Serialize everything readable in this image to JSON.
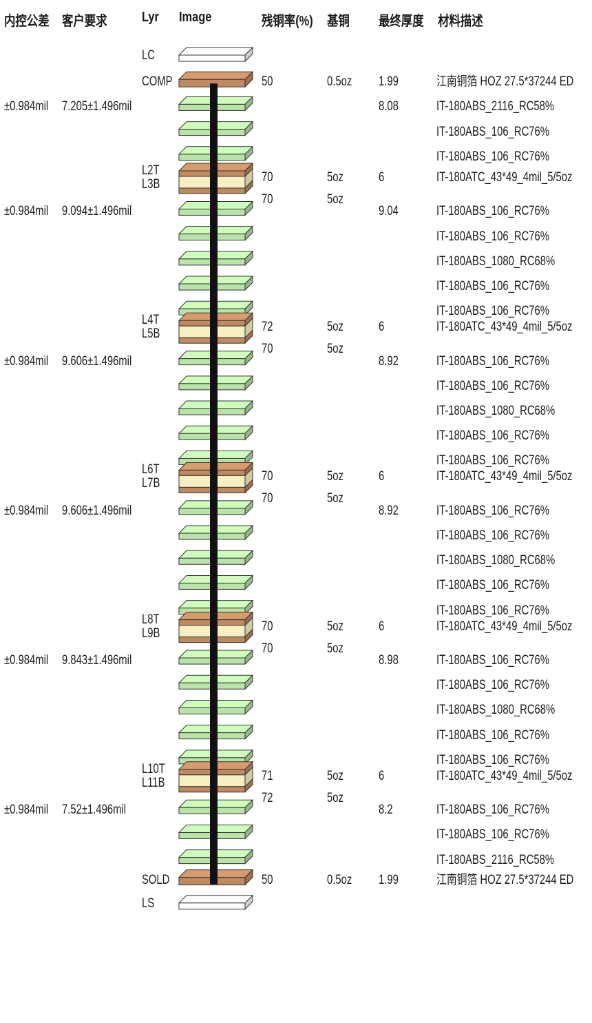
{
  "headers": {
    "inner_tolerance": "内控公差",
    "customer_requirement": "客户要求",
    "layer": "Lyr",
    "image": "Image",
    "residual_copper": "残铜率(%)",
    "base_copper": "基铜",
    "final_thickness": "最终厚度",
    "material": "材料描述"
  },
  "colors": {
    "copper": "#c08a60",
    "copper_light": "#d9a77c",
    "core": "#f6efc2",
    "prepreg": "#b9e3a8",
    "prepreg_side": "#8cc77a",
    "mask": "#ffffff",
    "drill": "#111111"
  },
  "mask_layers": [
    {
      "label": "LC"
    },
    {
      "label": "LS"
    }
  ],
  "outer_layers": [
    {
      "label": "COMP",
      "residual": "50",
      "base": "0.5oz",
      "thickness": "1.99",
      "material": "江南铜箔 HOZ 27.5*37244 ED"
    },
    {
      "label": "SOLD",
      "residual": "50",
      "base": "0.5oz",
      "thickness": "1.99",
      "material": "江南铜箔 HOZ 27.5*37244 ED"
    }
  ],
  "cores": [
    {
      "top_label": "L2T",
      "bottom_label": "L3B",
      "residual_top": "70",
      "residual_bottom": "70",
      "base_top": "5oz",
      "base_bottom": "5oz",
      "thickness": "6",
      "material": "IT-180ATC_43*49_4mil_5/5oz"
    },
    {
      "top_label": "L4T",
      "bottom_label": "L5B",
      "residual_top": "72",
      "residual_bottom": "70",
      "base_top": "5oz",
      "base_bottom": "5oz",
      "thickness": "6",
      "material": "IT-180ATC_43*49_4mil_5/5oz"
    },
    {
      "top_label": "L6T",
      "bottom_label": "L7B",
      "residual_top": "70",
      "residual_bottom": "70",
      "base_top": "5oz",
      "base_bottom": "5oz",
      "thickness": "6",
      "material": "IT-180ATC_43*49_4mil_5/5oz"
    },
    {
      "top_label": "L8T",
      "bottom_label": "L9B",
      "residual_top": "70",
      "residual_bottom": "70",
      "base_top": "5oz",
      "base_bottom": "5oz",
      "thickness": "6",
      "material": "IT-180ATC_43*49_4mil_5/5oz"
    },
    {
      "top_label": "L10T",
      "bottom_label": "L11B",
      "residual_top": "71",
      "residual_bottom": "72",
      "base_top": "5oz",
      "base_bottom": "5oz",
      "thickness": "6",
      "material": "IT-180ATC_43*49_4mil_5/5oz"
    }
  ],
  "dielectric_groups": [
    {
      "inner_tolerance": "±0.984mil",
      "customer_requirement": "7.205±1.496mil",
      "thickness": "8.08",
      "plies": [
        "IT-180ABS_2116_RC58%",
        "IT-180ABS_106_RC76%",
        "IT-180ABS_106_RC76%"
      ]
    },
    {
      "inner_tolerance": "±0.984mil",
      "customer_requirement": "9.094±1.496mil",
      "thickness": "9.04",
      "plies": [
        "IT-180ABS_106_RC76%",
        "IT-180ABS_106_RC76%",
        "IT-180ABS_1080_RC68%",
        "IT-180ABS_106_RC76%",
        "IT-180ABS_106_RC76%"
      ]
    },
    {
      "inner_tolerance": "±0.984mil",
      "customer_requirement": "9.606±1.496mil",
      "thickness": "8.92",
      "plies": [
        "IT-180ABS_106_RC76%",
        "IT-180ABS_106_RC76%",
        "IT-180ABS_1080_RC68%",
        "IT-180ABS_106_RC76%",
        "IT-180ABS_106_RC76%"
      ]
    },
    {
      "inner_tolerance": "±0.984mil",
      "customer_requirement": "9.606±1.496mil",
      "thickness": "8.92",
      "plies": [
        "IT-180ABS_106_RC76%",
        "IT-180ABS_106_RC76%",
        "IT-180ABS_1080_RC68%",
        "IT-180ABS_106_RC76%",
        "IT-180ABS_106_RC76%"
      ]
    },
    {
      "inner_tolerance": "±0.984mil",
      "customer_requirement": "9.843±1.496mil",
      "thickness": "8.98",
      "plies": [
        "IT-180ABS_106_RC76%",
        "IT-180ABS_106_RC76%",
        "IT-180ABS_1080_RC68%",
        "IT-180ABS_106_RC76%",
        "IT-180ABS_106_RC76%"
      ]
    },
    {
      "inner_tolerance": "±0.984mil",
      "customer_requirement": "7.52±1.496mil",
      "thickness": "8.2",
      "plies": [
        "IT-180ABS_106_RC76%",
        "IT-180ABS_106_RC76%",
        "IT-180ABS_2116_RC58%"
      ]
    }
  ]
}
